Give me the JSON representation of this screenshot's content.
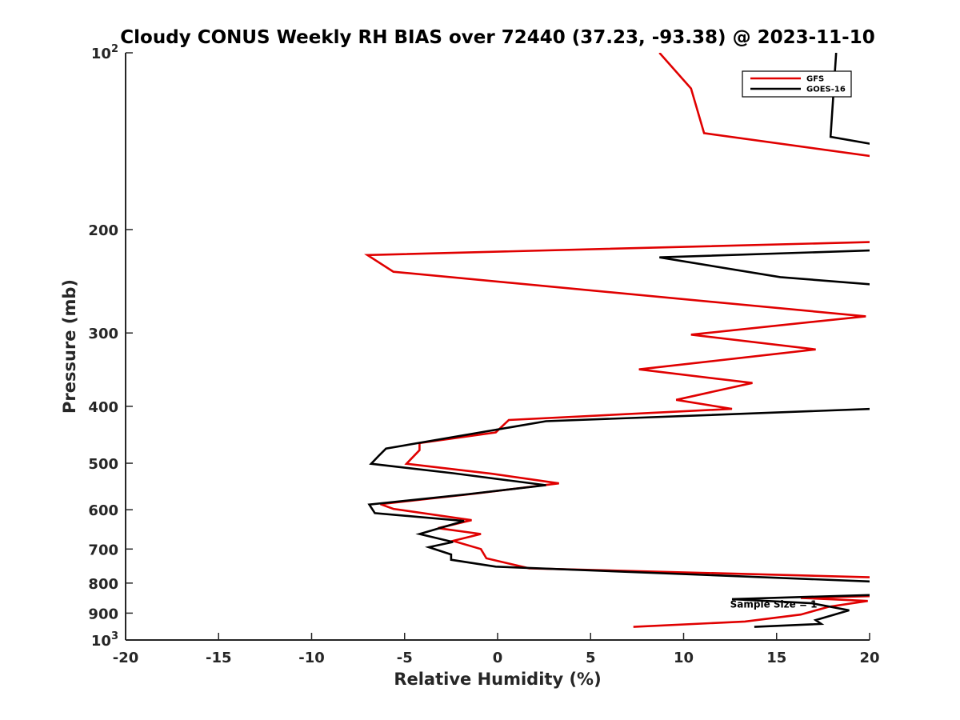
{
  "chart_data": {
    "type": "line",
    "title": "Cloudy CONUS Weekly RH BIAS over 72440 (37.23, -93.38) @ 2023-11-10",
    "xlabel": "Relative Humidity (%)",
    "ylabel": "Pressure (mb)",
    "xlim": [
      -20,
      20
    ],
    "ylim": [
      100,
      1000
    ],
    "y_scale": "log",
    "y_reversed": true,
    "grid": false,
    "legend_position": "top-right",
    "x_ticks": [
      -20,
      -15,
      -10,
      -5,
      0,
      5,
      10,
      15,
      20
    ],
    "x_tick_labels": [
      "-20",
      "-15",
      "-10",
      "-5",
      "0",
      "5",
      "10",
      "15",
      "20"
    ],
    "y_ticks": [
      100,
      200,
      300,
      400,
      500,
      600,
      700,
      800,
      900,
      1000
    ],
    "y_tick_labels": [
      {
        "value": 100,
        "base": "10",
        "exp": "2"
      },
      {
        "value": 200,
        "base": "200",
        "exp": ""
      },
      {
        "value": 300,
        "base": "300",
        "exp": ""
      },
      {
        "value": 400,
        "base": "400",
        "exp": ""
      },
      {
        "value": 500,
        "base": "500",
        "exp": ""
      },
      {
        "value": 600,
        "base": "600",
        "exp": ""
      },
      {
        "value": 700,
        "base": "700",
        "exp": ""
      },
      {
        "value": 800,
        "base": "800",
        "exp": ""
      },
      {
        "value": 900,
        "base": "900",
        "exp": ""
      },
      {
        "value": 1000,
        "base": "10",
        "exp": "3"
      }
    ],
    "series": [
      {
        "name": "GFS",
        "color": "#e00000",
        "points": [
          [
            7.3,
            950
          ],
          [
            13.3,
            930
          ],
          [
            16.3,
            905
          ],
          [
            17.8,
            878
          ],
          [
            19.9,
            858
          ],
          [
            16.3,
            848
          ],
          [
            20.1,
            842
          ],
          [
            20.1,
            782
          ],
          [
            1.7,
            755
          ],
          [
            -0.6,
            726
          ],
          [
            -0.9,
            700
          ],
          [
            -2.4,
            678
          ],
          [
            -0.9,
            660
          ],
          [
            -3.2,
            645
          ],
          [
            -1.4,
            625
          ],
          [
            -5.6,
            598
          ],
          [
            -6.3,
            587
          ],
          [
            -1.2,
            563
          ],
          [
            3.3,
            541
          ],
          [
            -0.3,
            521
          ],
          [
            -4.9,
            501
          ],
          [
            -4.2,
            475
          ],
          [
            -4.2,
            462
          ],
          [
            -0.1,
            443
          ],
          [
            0.6,
            422
          ],
          [
            12.6,
            404
          ],
          [
            9.6,
            390
          ],
          [
            13.7,
            365
          ],
          [
            7.6,
            346
          ],
          [
            17.1,
            320
          ],
          [
            10.4,
            302
          ],
          [
            19.8,
            281
          ],
          [
            -5.6,
            236
          ],
          [
            -7.0,
            221
          ],
          [
            20.1,
            210
          ],
          [
            20.1,
            150
          ],
          [
            11.1,
            137
          ],
          [
            10.4,
            115
          ],
          [
            8.7,
            100
          ]
        ]
      },
      {
        "name": "GOES-16",
        "color": "#000000",
        "points": [
          [
            13.8,
            950
          ],
          [
            17.4,
            939
          ],
          [
            17.1,
            925
          ],
          [
            18.9,
            890
          ],
          [
            16.9,
            866
          ],
          [
            12.6,
            852
          ],
          [
            20.1,
            838
          ],
          [
            20.1,
            795
          ],
          [
            -0.1,
            750
          ],
          [
            -2.5,
            730
          ],
          [
            -2.5,
            715
          ],
          [
            -3.7,
            695
          ],
          [
            -2.4,
            681
          ],
          [
            -4.2,
            660
          ],
          [
            -1.8,
            627
          ],
          [
            -6.6,
            608
          ],
          [
            -6.9,
            588
          ],
          [
            -1.7,
            565
          ],
          [
            2.6,
            545
          ],
          [
            -2.4,
            520
          ],
          [
            -6.8,
            501
          ],
          [
            -6.4,
            486
          ],
          [
            -6.0,
            472
          ],
          [
            2.6,
            424
          ],
          [
            20.1,
            404
          ],
          [
            20.1,
            248
          ],
          [
            15.2,
            241
          ],
          [
            8.7,
            223
          ],
          [
            20.1,
            217
          ],
          [
            20.1,
            143
          ],
          [
            17.9,
            139
          ],
          [
            18.2,
            100
          ]
        ]
      }
    ],
    "annotations": [
      {
        "text": "Sample Size = 1",
        "x": 12.5,
        "y": 880
      }
    ]
  }
}
